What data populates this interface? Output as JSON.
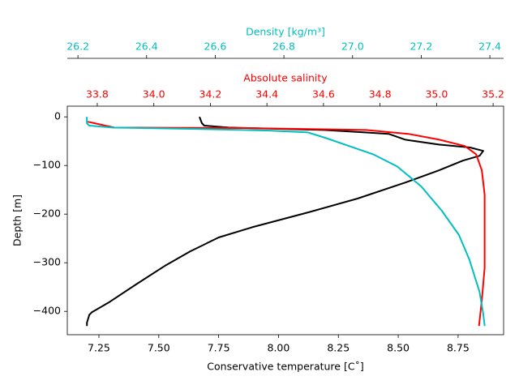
{
  "chart_data": {
    "type": "line",
    "xlabel": "Conservative temperature [C˚]",
    "xlim": [
      7.118,
      8.94
    ],
    "xticks": [
      7.25,
      {
        "value": 7.5,
        "label": "7.50"
      },
      7.75,
      {
        "value": 8.0,
        "label": "8.00"
      },
      8.25,
      {
        "value": 8.5,
        "label": "8.50"
      },
      8.75
    ],
    "x2label": "Absolute salinity",
    "x2color": "#ff0000",
    "x2lim": [
      33.694,
      35.237
    ],
    "x2ticks": [
      33.8,
      {
        "value": 34.0,
        "label": "34.0"
      },
      34.2,
      34.4,
      34.6,
      34.8,
      {
        "value": 35.0,
        "label": "35.0"
      },
      35.2
    ],
    "x3label": "Density [kg/m³]",
    "x3color": "#00bfbf",
    "x3lim": [
      26.169,
      27.44
    ],
    "x3ticks": [
      26.2,
      26.4,
      26.6,
      26.8,
      {
        "value": 27.0,
        "label": "27.0"
      },
      27.2,
      27.4
    ],
    "ylabel": "Depth [m]",
    "ylim": [
      -448,
      22
    ],
    "yticks": [
      {
        "value": -400,
        "label": "−400"
      },
      {
        "value": -300,
        "label": "−300"
      },
      {
        "value": -200,
        "label": "−200"
      },
      {
        "value": -100,
        "label": "−100"
      },
      0
    ],
    "series": [
      {
        "color": "#000000",
        "axis": "x",
        "x": [
          7.67,
          7.68,
          7.69,
          7.79,
          8.19,
          8.36,
          8.46,
          8.53,
          8.67,
          8.8,
          8.855,
          8.84,
          8.77,
          8.67,
          8.53,
          8.33,
          8.12,
          7.89,
          7.75,
          7.63,
          7.53,
          7.41,
          7.29,
          7.22,
          7.21,
          7.2,
          7.2
        ],
        "y": [
          0,
          -13,
          -18,
          -22,
          -27,
          -32,
          -35,
          -47,
          -57,
          -63,
          -70,
          -80,
          -90,
          -110,
          -135,
          -168,
          -197,
          -227,
          -248,
          -277,
          -305,
          -343,
          -382,
          -402,
          -407,
          -423,
          -430
        ]
      },
      {
        "color": "#ff0000",
        "axis": "x2",
        "x": [
          33.766,
          33.86,
          34.32,
          34.75,
          34.9,
          35.01,
          35.1,
          35.14,
          35.16,
          35.17,
          35.17,
          35.17,
          35.16,
          35.15
        ],
        "y": [
          -10,
          -22,
          -23,
          -27,
          -35,
          -47,
          -60,
          -77,
          -110,
          -160,
          -227,
          -310,
          -377,
          -430
        ]
      },
      {
        "color": "#00bfbf",
        "axis": "x3",
        "x": [
          26.226,
          26.226,
          26.233,
          26.3,
          26.56,
          26.75,
          26.87,
          26.92,
          26.99,
          27.06,
          27.13,
          27.2,
          27.26,
          27.31,
          27.34,
          27.37,
          27.38,
          27.385
        ],
        "y": [
          0,
          -13,
          -18,
          -22,
          -25,
          -28,
          -32,
          -43,
          -60,
          -77,
          -102,
          -143,
          -193,
          -243,
          -293,
          -360,
          -402,
          -430
        ]
      }
    ]
  }
}
